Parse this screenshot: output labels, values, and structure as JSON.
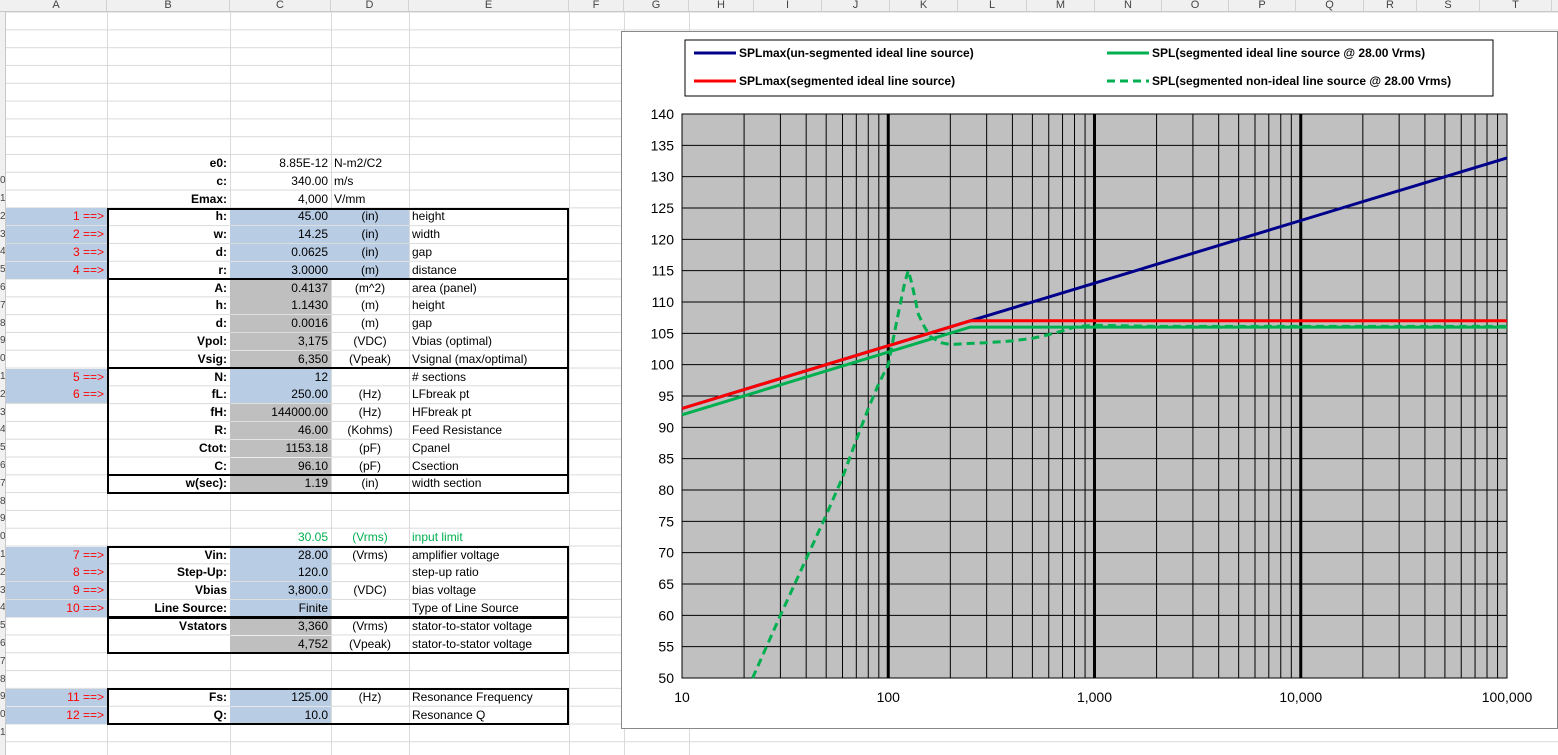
{
  "columns": [
    "A",
    "B",
    "C",
    "D",
    "E",
    "F",
    "G",
    "H",
    "I",
    "J",
    "K",
    "L",
    "M",
    "N",
    "O",
    "P",
    "Q",
    "R",
    "S",
    "T"
  ],
  "row_numbers": [
    "",
    "",
    "",
    "",
    "",
    "",
    "",
    "",
    "",
    "0",
    "1",
    "2",
    "3",
    "4",
    "5",
    "6",
    "7",
    "8",
    "9",
    "0",
    "1",
    "2",
    "3",
    "4",
    "5",
    "6",
    "7",
    "8",
    "9",
    "0",
    "1",
    "2",
    "3",
    "4",
    "5",
    "6",
    "7",
    "8",
    "9",
    "0",
    "1"
  ],
  "constants": [
    {
      "label": "e0:",
      "value": "8.85E-12",
      "unit": "N-m2/C2"
    },
    {
      "label": "c:",
      "value": "340.00",
      "unit": "m/s"
    },
    {
      "label": "Emax:",
      "value": "4,000",
      "unit": "V/mm"
    }
  ],
  "inputs1": [
    {
      "marker": "1 ==>",
      "label": "h:",
      "value": "45.00",
      "unit": "(in)",
      "desc": "height"
    },
    {
      "marker": "2 ==>",
      "label": "w:",
      "value": "14.25",
      "unit": "(in)",
      "desc": "width"
    },
    {
      "marker": "3 ==>",
      "label": "d:",
      "value": "0.0625",
      "unit": "(in)",
      "desc": "gap"
    },
    {
      "marker": "4 ==>",
      "label": "r:",
      "value": "3.0000",
      "unit": "(m)",
      "desc": "distance"
    }
  ],
  "calc1": [
    {
      "label": "A:",
      "value": "0.4137",
      "unit": "(m^2)",
      "desc": "area (panel)"
    },
    {
      "label": "h:",
      "value": "1.1430",
      "unit": "(m)",
      "desc": "height"
    },
    {
      "label": "d:",
      "value": "0.0016",
      "unit": "(m)",
      "desc": "gap"
    },
    {
      "label": "Vpol:",
      "value": "3,175",
      "unit": "(VDC)",
      "desc": "Vbias (optimal)"
    },
    {
      "label": "Vsig:",
      "value": "6,350",
      "unit": "(Vpeak)",
      "desc": "Vsignal (max/optimal)"
    }
  ],
  "inputs2": [
    {
      "marker": "5 ==>",
      "label": "N:",
      "value": "12",
      "unit": "",
      "desc": "# sections",
      "blue": true
    },
    {
      "marker": "6 ==>",
      "label": "fL:",
      "value": "250.00",
      "unit": "(Hz)",
      "desc": "LFbreak pt",
      "blue": true
    },
    {
      "marker": "",
      "label": "fH:",
      "value": "144000.00",
      "unit": "(Hz)",
      "desc": "HFbreak pt",
      "blue": false
    },
    {
      "marker": "",
      "label": "R:",
      "value": "46.00",
      "unit": "(Kohms)",
      "desc": "Feed Resistance",
      "blue": false
    },
    {
      "marker": "",
      "label": "Ctot:",
      "value": "1153.18",
      "unit": "(pF)",
      "desc": "Cpanel",
      "blue": false
    },
    {
      "marker": "",
      "label": "C:",
      "value": "96.10",
      "unit": "(pF)",
      "desc": "Csection",
      "blue": false
    },
    {
      "marker": "",
      "label": "w(sec):",
      "value": "1.19",
      "unit": "(in)",
      "desc": "width section",
      "blue": false
    }
  ],
  "limit": {
    "value": "30.05",
    "unit": "(Vrms)",
    "desc": "input limit"
  },
  "inputs3": [
    {
      "marker": "7 ==>",
      "label": "Vin:",
      "value": "28.00",
      "unit": "(Vrms)",
      "desc": "amplifier voltage"
    },
    {
      "marker": "8 ==>",
      "label": "Step-Up:",
      "value": "120.0",
      "unit": "",
      "desc": "step-up ratio"
    },
    {
      "marker": "9 ==>",
      "label": "Vbias",
      "value": "3,800.0",
      "unit": "(VDC)",
      "desc": "bias voltage"
    },
    {
      "marker": "10 ==>",
      "label": "Line Source:",
      "value": "Finite",
      "unit": "",
      "desc": "Type of Line Source"
    }
  ],
  "stators": {
    "label": "Vstators",
    "rows": [
      {
        "value": "3,360",
        "unit": "(Vrms)",
        "desc": "stator-to-stator voltage"
      },
      {
        "value": "4,752",
        "unit": "(Vpeak)",
        "desc": "stator-to-stator voltage"
      }
    ]
  },
  "inputs4": [
    {
      "marker": "11 ==>",
      "label": "Fs:",
      "value": "125.00",
      "unit": "(Hz)",
      "desc": "Resonance Frequency"
    },
    {
      "marker": "12 ==>",
      "label": "Q:",
      "value": "10.0",
      "unit": "",
      "desc": "Resonance Q"
    }
  ],
  "colors": {
    "navy": "#00008b",
    "red": "#ff0000",
    "green": "#00b050",
    "plot_bg": "#c0c0c0",
    "input_blue": "#b8cce4",
    "calc_gray": "#bfbfbf"
  },
  "chart_data": {
    "type": "line",
    "x_scale": "log",
    "xlim": [
      10,
      100000
    ],
    "ylim": [
      50,
      140
    ],
    "x_ticks": [
      "10",
      "100",
      "1,000",
      "10,000",
      "100,000"
    ],
    "y_ticks": [
      "50",
      "55",
      "60",
      "65",
      "70",
      "75",
      "80",
      "85",
      "90",
      "95",
      "100",
      "105",
      "110",
      "115",
      "120",
      "125",
      "130",
      "135",
      "140"
    ],
    "grid": true,
    "legend_position": "top",
    "series": [
      {
        "name": "SPLmax(un-segmented ideal line source)",
        "color": "#00008b",
        "dash": false,
        "points": [
          [
            10,
            93
          ],
          [
            250,
            107
          ],
          [
            1000,
            113
          ],
          [
            10000,
            123
          ],
          [
            100000,
            133
          ]
        ]
      },
      {
        "name": "SPLmax(segmented ideal line source)",
        "color": "#ff0000",
        "dash": false,
        "points": [
          [
            10,
            93
          ],
          [
            250,
            107
          ],
          [
            100000,
            107
          ]
        ]
      },
      {
        "name": "SPL(segmented ideal line source @ 28.00 Vrms)",
        "color": "#00b050",
        "dash": false,
        "points": [
          [
            10,
            92
          ],
          [
            250,
            106
          ],
          [
            100000,
            106
          ]
        ]
      },
      {
        "name": "SPL(segmented non-ideal line source @ 28.00 Vrms)",
        "color": "#00b050",
        "dash": true,
        "points": [
          [
            22,
            50
          ],
          [
            30,
            60
          ],
          [
            40,
            69
          ],
          [
            50,
            76
          ],
          [
            60,
            82
          ],
          [
            70,
            88
          ],
          [
            80,
            93
          ],
          [
            90,
            97
          ],
          [
            100,
            100
          ],
          [
            110,
            107
          ],
          [
            120,
            113
          ],
          [
            125,
            115
          ],
          [
            130,
            113
          ],
          [
            140,
            108
          ],
          [
            150,
            106
          ],
          [
            160,
            104.5
          ],
          [
            180,
            103.5
          ],
          [
            200,
            103.2
          ],
          [
            250,
            103.4
          ],
          [
            300,
            103.5
          ],
          [
            400,
            103.8
          ],
          [
            500,
            104.2
          ],
          [
            600,
            104.8
          ],
          [
            700,
            105.4
          ],
          [
            800,
            106
          ],
          [
            1000,
            106.3
          ],
          [
            2000,
            106.1
          ],
          [
            100000,
            106.1
          ]
        ]
      }
    ]
  }
}
